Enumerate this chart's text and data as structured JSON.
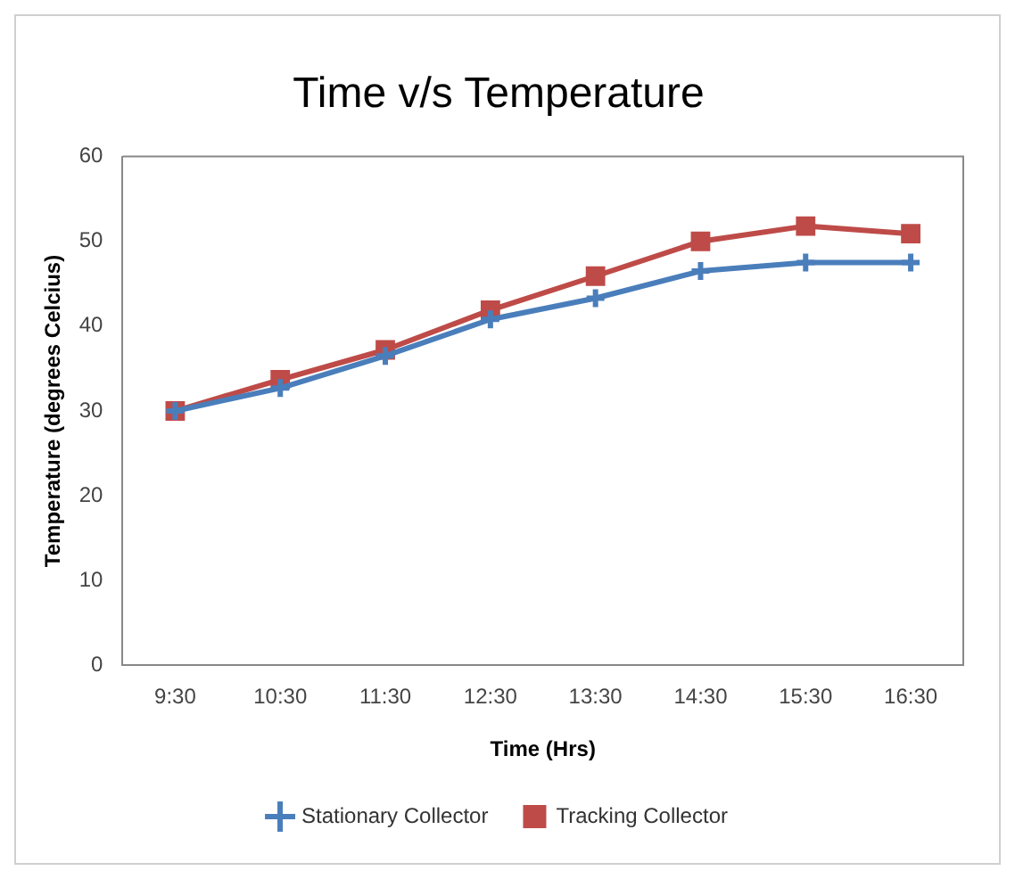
{
  "chart_data": {
    "type": "line",
    "title": "Time v/s Temperature",
    "xlabel": "Time (Hrs)",
    "ylabel": "Temperature (degrees Celcius)",
    "categories": [
      "9:30",
      "10:30",
      "11:30",
      "12:30",
      "13:30",
      "14:30",
      "15:30",
      "16:30"
    ],
    "series": [
      {
        "name": "Stationary Collector",
        "color": "#4a7ebb",
        "marker": "cross",
        "values": [
          30,
          32.7,
          36.5,
          40.8,
          43.3,
          46.5,
          47.5,
          47.5
        ]
      },
      {
        "name": "Tracking Collector",
        "color": "#be4b48",
        "marker": "square",
        "values": [
          30,
          33.7,
          37.2,
          41.9,
          45.9,
          50,
          51.8,
          50.9
        ]
      }
    ],
    "ylim": [
      0,
      60
    ],
    "yticks": [
      0,
      10,
      20,
      30,
      40,
      50,
      60
    ],
    "grid": false,
    "legend": "bottom",
    "line_style": "solid"
  }
}
